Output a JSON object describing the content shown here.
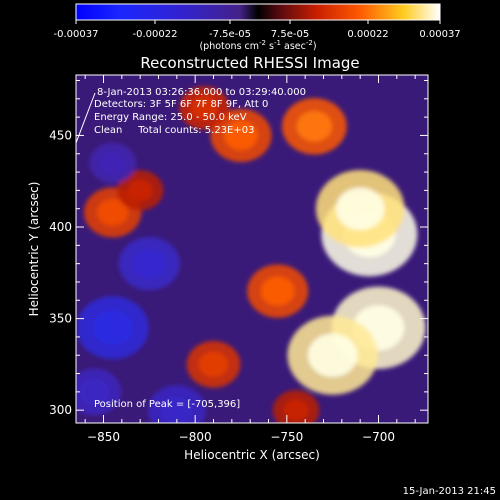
{
  "colorbar": {
    "ticks": [
      "-0.00037",
      "-0.00022",
      "-7.5e-05",
      "7.5e-05",
      "0.00022",
      "0.00037"
    ],
    "units_main": "(photons cm",
    "units_e1": "-2",
    "units_mid": " s",
    "units_e2": "-1",
    "units_end": " asec",
    "units_e3": "-2",
    "units_close": ")"
  },
  "chart_data": {
    "type": "heatmap",
    "title": "Reconstructed RHESSI Image",
    "xlabel": "Heliocentric X (arcsec)",
    "ylabel": "Heliocentric Y (arcsec)",
    "xlim": [
      -865,
      -673
    ],
    "ylim": [
      293,
      483
    ],
    "x_ticks": [
      -850,
      -800,
      -750,
      -700
    ],
    "y_ticks": [
      300,
      350,
      400,
      450
    ],
    "x_tick_labels": [
      "−850",
      "−800",
      "−750",
      "−700"
    ],
    "y_tick_labels": [
      "300",
      "350",
      "400",
      "450"
    ],
    "color_range": [
      -0.00037,
      0.00037
    ],
    "bright_regions": [
      {
        "x": -705,
        "y": 396,
        "value": 0.00037
      },
      {
        "x": -700,
        "y": 345,
        "value": 0.00036
      },
      {
        "x": -725,
        "y": 330,
        "value": 0.00034
      },
      {
        "x": -710,
        "y": 410,
        "value": 0.00033
      },
      {
        "x": -755,
        "y": 365,
        "value": 0.00018
      },
      {
        "x": -790,
        "y": 325,
        "value": 0.00014
      },
      {
        "x": -775,
        "y": 450,
        "value": 0.00018
      },
      {
        "x": -735,
        "y": 455,
        "value": 0.0002
      },
      {
        "x": -795,
        "y": 465,
        "value": 0.00012
      },
      {
        "x": -845,
        "y": 408,
        "value": 0.00016
      },
      {
        "x": -830,
        "y": 420,
        "value": 0.0001
      },
      {
        "x": -745,
        "y": 300,
        "value": 0.0001
      }
    ],
    "dark_regions": [
      {
        "x": -845,
        "y": 345,
        "value": -0.00024
      },
      {
        "x": -825,
        "y": 380,
        "value": -0.00018
      },
      {
        "x": -810,
        "y": 300,
        "value": -0.00016
      },
      {
        "x": -855,
        "y": 310,
        "value": -0.00014
      },
      {
        "x": -845,
        "y": 435,
        "value": -0.0001
      }
    ]
  },
  "annotations": {
    "time_range": "8-Jan-2013 03:26:36.000 to 03:29:40.000",
    "detectors": "Detectors: 3F 5F 6F 7F 8F 9F, Att 0",
    "energy": "Energy Range: 25.0 - 50.0 keV",
    "clean": "Clean     Total counts: 5.23E+03",
    "peak": "Position of Peak = [-705,396]"
  },
  "footer": {
    "timestamp": "15-Jan-2013 21:45"
  }
}
